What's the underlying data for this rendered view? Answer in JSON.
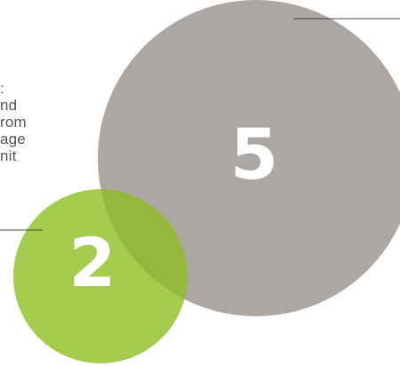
{
  "circles": {
    "large": {
      "value": "5",
      "color": "#aca7a2"
    },
    "small": {
      "value": "2",
      "color": "#a3cb4d"
    },
    "overlap_color": "#93b73f"
  },
  "side_text_lines": [
    ":",
    "nd",
    "rom",
    "age",
    "nit"
  ],
  "connector_color": "#444444"
}
